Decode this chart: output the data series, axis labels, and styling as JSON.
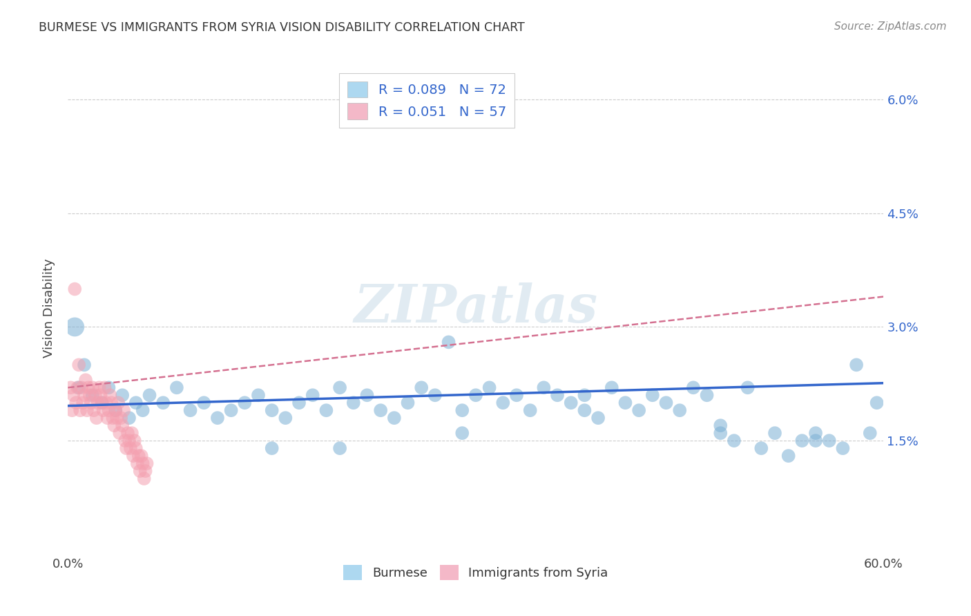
{
  "title": "BURMESE VS IMMIGRANTS FROM SYRIA VISION DISABILITY CORRELATION CHART",
  "source_text": "Source: ZipAtlas.com",
  "ylabel": "Vision Disability",
  "xlabel_burmese": "Burmese",
  "xlabel_syria": "Immigrants from Syria",
  "xmin": 0.0,
  "xmax": 0.6,
  "ymin": 0.0,
  "ymax": 0.065,
  "yticks": [
    0.015,
    0.03,
    0.045,
    0.06
  ],
  "ytick_labels": [
    "1.5%",
    "3.0%",
    "4.5%",
    "6.0%"
  ],
  "xticks": [
    0.0,
    0.6
  ],
  "xtick_labels": [
    "0.0%",
    "60.0%"
  ],
  "r_burmese": 0.089,
  "n_burmese": 72,
  "r_syria": 0.051,
  "n_syria": 57,
  "color_burmese": "#7BAFD4",
  "color_syria": "#F4A0B0",
  "color_burmese_line": "#3366CC",
  "color_syria_line": "#D47090",
  "color_burmese_legend": "#ADD8F0",
  "color_syria_legend": "#F4B8C8",
  "watermark": "ZIPatlas",
  "background_color": "#FFFFFF",
  "grid_color": "#CCCCCC",
  "title_color": "#333333",
  "burmese_x": [
    0.005,
    0.008,
    0.012,
    0.018,
    0.025,
    0.03,
    0.035,
    0.04,
    0.045,
    0.05,
    0.055,
    0.06,
    0.07,
    0.08,
    0.09,
    0.1,
    0.11,
    0.12,
    0.13,
    0.14,
    0.15,
    0.16,
    0.17,
    0.18,
    0.19,
    0.2,
    0.21,
    0.22,
    0.23,
    0.24,
    0.25,
    0.26,
    0.27,
    0.28,
    0.29,
    0.3,
    0.31,
    0.32,
    0.33,
    0.34,
    0.35,
    0.36,
    0.37,
    0.38,
    0.39,
    0.4,
    0.41,
    0.42,
    0.43,
    0.44,
    0.45,
    0.46,
    0.47,
    0.48,
    0.49,
    0.5,
    0.51,
    0.52,
    0.53,
    0.54,
    0.55,
    0.56,
    0.57,
    0.58,
    0.59,
    0.595,
    0.55,
    0.48,
    0.38,
    0.29,
    0.2,
    0.15
  ],
  "burmese_y": [
    0.03,
    0.022,
    0.025,
    0.021,
    0.02,
    0.022,
    0.019,
    0.021,
    0.018,
    0.02,
    0.019,
    0.021,
    0.02,
    0.022,
    0.019,
    0.02,
    0.018,
    0.019,
    0.02,
    0.021,
    0.019,
    0.018,
    0.02,
    0.021,
    0.019,
    0.022,
    0.02,
    0.021,
    0.019,
    0.018,
    0.02,
    0.022,
    0.021,
    0.028,
    0.019,
    0.021,
    0.022,
    0.02,
    0.021,
    0.019,
    0.022,
    0.021,
    0.02,
    0.019,
    0.018,
    0.022,
    0.02,
    0.019,
    0.021,
    0.02,
    0.019,
    0.022,
    0.021,
    0.016,
    0.015,
    0.022,
    0.014,
    0.016,
    0.013,
    0.015,
    0.016,
    0.015,
    0.014,
    0.025,
    0.016,
    0.02,
    0.015,
    0.017,
    0.021,
    0.016,
    0.014,
    0.014
  ],
  "burmese_sizes": [
    400,
    200,
    200,
    200,
    200,
    200,
    200,
    200,
    200,
    200,
    200,
    200,
    200,
    200,
    200,
    200,
    200,
    200,
    200,
    200,
    200,
    200,
    200,
    200,
    200,
    200,
    200,
    200,
    200,
    200,
    200,
    200,
    200,
    200,
    200,
    200,
    200,
    200,
    200,
    200,
    200,
    200,
    200,
    200,
    200,
    200,
    200,
    200,
    200,
    200,
    200,
    200,
    200,
    200,
    200,
    200,
    200,
    200,
    200,
    200,
    200,
    200,
    200,
    200,
    200,
    200,
    200,
    200,
    200,
    200,
    200,
    200
  ],
  "syria_x": [
    0.002,
    0.003,
    0.004,
    0.005,
    0.006,
    0.007,
    0.008,
    0.009,
    0.01,
    0.011,
    0.012,
    0.013,
    0.014,
    0.015,
    0.016,
    0.017,
    0.018,
    0.019,
    0.02,
    0.021,
    0.022,
    0.023,
    0.024,
    0.025,
    0.026,
    0.027,
    0.028,
    0.029,
    0.03,
    0.031,
    0.032,
    0.033,
    0.034,
    0.035,
    0.036,
    0.037,
    0.038,
    0.039,
    0.04,
    0.041,
    0.042,
    0.043,
    0.044,
    0.045,
    0.046,
    0.047,
    0.048,
    0.049,
    0.05,
    0.051,
    0.052,
    0.053,
    0.054,
    0.055,
    0.056,
    0.057,
    0.058
  ],
  "syria_y": [
    0.022,
    0.019,
    0.021,
    0.035,
    0.02,
    0.022,
    0.025,
    0.019,
    0.022,
    0.02,
    0.021,
    0.023,
    0.019,
    0.022,
    0.021,
    0.02,
    0.022,
    0.019,
    0.021,
    0.018,
    0.02,
    0.022,
    0.021,
    0.02,
    0.019,
    0.022,
    0.02,
    0.018,
    0.019,
    0.021,
    0.02,
    0.018,
    0.017,
    0.019,
    0.018,
    0.02,
    0.016,
    0.018,
    0.017,
    0.019,
    0.015,
    0.014,
    0.016,
    0.015,
    0.014,
    0.016,
    0.013,
    0.015,
    0.014,
    0.012,
    0.013,
    0.011,
    0.013,
    0.012,
    0.01,
    0.011,
    0.012
  ],
  "syria_sizes": [
    200,
    200,
    200,
    200,
    200,
    200,
    200,
    200,
    200,
    200,
    200,
    200,
    200,
    200,
    200,
    200,
    200,
    200,
    200,
    200,
    200,
    200,
    200,
    200,
    200,
    200,
    200,
    200,
    200,
    200,
    200,
    200,
    200,
    200,
    200,
    200,
    200,
    200,
    200,
    200,
    200,
    200,
    200,
    200,
    200,
    200,
    200,
    200,
    200,
    200,
    200,
    200,
    200,
    200,
    200,
    200,
    200
  ],
  "burmese_line_x": [
    0.0,
    0.6
  ],
  "burmese_line_y": [
    0.0196,
    0.0226
  ],
  "syria_line_x": [
    0.0,
    0.6
  ],
  "syria_line_y": [
    0.022,
    0.034
  ]
}
